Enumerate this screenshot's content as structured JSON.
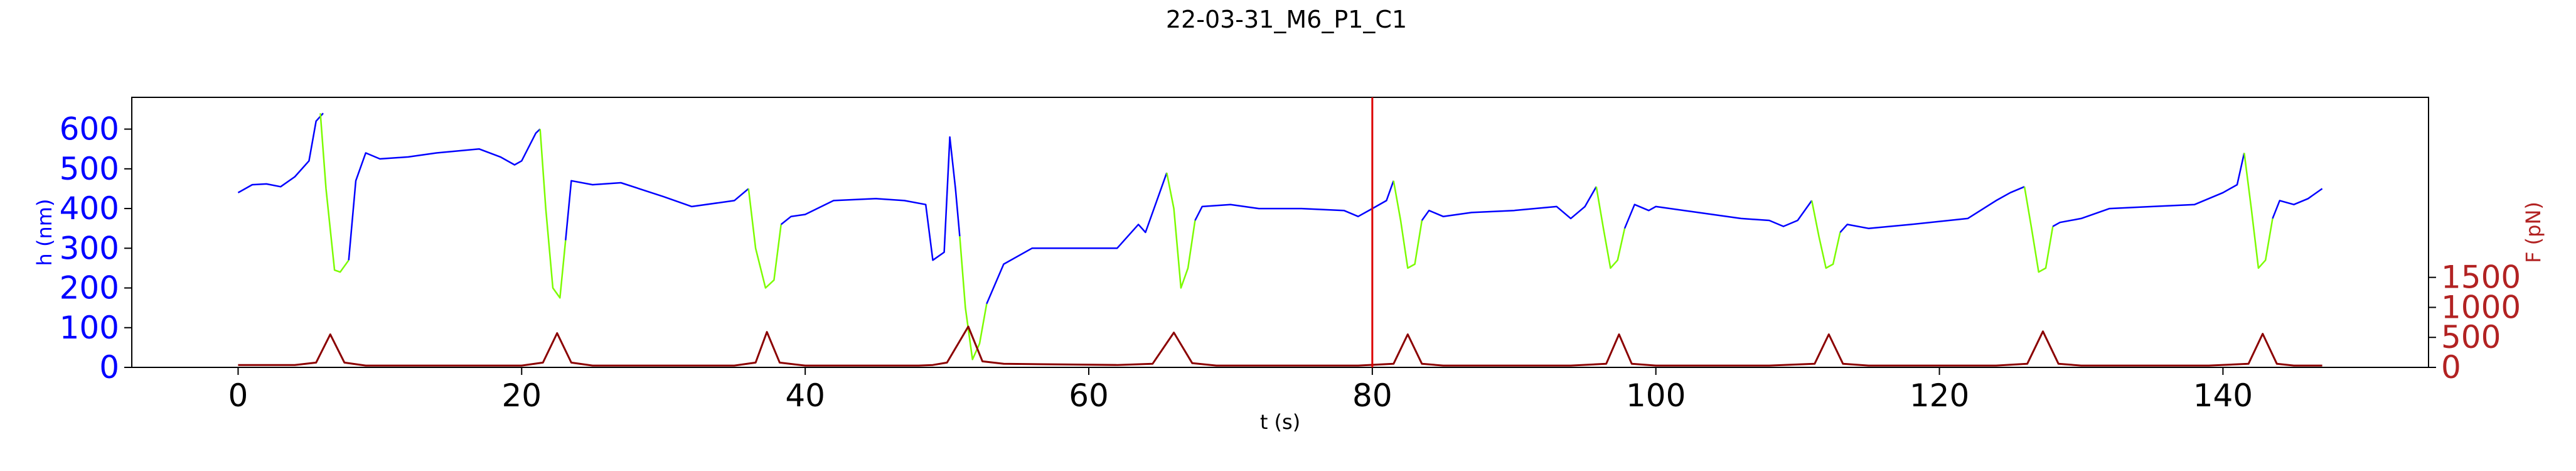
{
  "chart_data": {
    "type": "line",
    "title": "22-03-31_M6_P1_C1",
    "xlabel": "t (s)",
    "ylabel_left": "h (nm)",
    "ylabel_right": "F (pN)",
    "xlim": [
      -7.5,
      154.5
    ],
    "ylim_left": [
      0,
      680
    ],
    "ylim_right": [
      0,
      4500
    ],
    "x_ticks": [
      "0",
      "20",
      "40",
      "60",
      "80",
      "100",
      "120",
      "140"
    ],
    "y_left_ticks": [
      "0",
      "100",
      "200",
      "300",
      "400",
      "500",
      "600"
    ],
    "y_right_ticks": [
      "0",
      "500",
      "1000",
      "1500"
    ],
    "vertical_marker_x": 80,
    "colors": {
      "h_series": "#0000ff",
      "compression_series": "#7cfc00",
      "force_series": "#8b0000",
      "marker": "#dd0000",
      "left_axis": "#0000ff",
      "right_axis": "#b22222"
    },
    "series": [
      {
        "axis": "left",
        "color": "#0000ff",
        "x": [
          0,
          1,
          2,
          3,
          4,
          5,
          5.5,
          6
        ],
        "y": [
          440,
          460,
          462,
          455,
          480,
          520,
          620,
          640
        ]
      },
      {
        "axis": "left",
        "color": "#7cfc00",
        "x": [
          5.8,
          6.2,
          6.8,
          7.2,
          7.8
        ],
        "y": [
          640,
          450,
          245,
          240,
          270
        ]
      },
      {
        "axis": "left",
        "color": "#0000ff",
        "x": [
          7.8,
          8.3,
          9,
          10,
          12,
          14,
          17,
          18.5,
          19.5,
          20,
          21,
          21.3
        ],
        "y": [
          270,
          470,
          540,
          525,
          530,
          540,
          550,
          530,
          510,
          520,
          590,
          600
        ]
      },
      {
        "axis": "left",
        "color": "#7cfc00",
        "x": [
          21.3,
          21.7,
          22.2,
          22.7,
          23.1
        ],
        "y": [
          600,
          400,
          200,
          175,
          320
        ]
      },
      {
        "axis": "left",
        "color": "#0000ff",
        "x": [
          23.1,
          23.5,
          25,
          27,
          30,
          32,
          35,
          36
        ],
        "y": [
          320,
          470,
          460,
          465,
          430,
          405,
          420,
          450
        ]
      },
      {
        "axis": "left",
        "color": "#7cfc00",
        "x": [
          36,
          36.5,
          37.2,
          37.8,
          38.3
        ],
        "y": [
          450,
          300,
          200,
          220,
          360
        ]
      },
      {
        "axis": "left",
        "color": "#0000ff",
        "x": [
          38.3,
          39,
          40,
          42,
          45,
          47,
          48.5,
          49,
          49.8,
          50.2,
          50.6,
          50.9
        ],
        "y": [
          360,
          380,
          385,
          420,
          425,
          420,
          410,
          270,
          290,
          580,
          450,
          330
        ]
      },
      {
        "axis": "left",
        "color": "#7cfc00",
        "x": [
          50.9,
          51.3,
          51.8,
          52.3,
          52.8
        ],
        "y": [
          330,
          150,
          20,
          60,
          160
        ]
      },
      {
        "axis": "left",
        "color": "#0000ff",
        "x": [
          52.8,
          54,
          56,
          58,
          60,
          62,
          63.5,
          64,
          65,
          65.5
        ],
        "y": [
          160,
          260,
          300,
          300,
          300,
          300,
          360,
          340,
          440,
          490
        ]
      },
      {
        "axis": "left",
        "color": "#7cfc00",
        "x": [
          65.5,
          66,
          66.5,
          67,
          67.5
        ],
        "y": [
          490,
          400,
          200,
          250,
          370
        ]
      },
      {
        "axis": "left",
        "color": "#0000ff",
        "x": [
          67.5,
          68,
          70,
          72,
          75,
          78,
          79,
          80,
          81,
          81.5
        ],
        "y": [
          370,
          405,
          410,
          400,
          400,
          395,
          380,
          400,
          420,
          470
        ]
      },
      {
        "axis": "left",
        "color": "#7cfc00",
        "x": [
          81.5,
          82,
          82.5,
          83,
          83.5
        ],
        "y": [
          470,
          370,
          250,
          260,
          370
        ]
      },
      {
        "axis": "left",
        "color": "#0000ff",
        "x": [
          83.5,
          84,
          85,
          87,
          90,
          93,
          94,
          95,
          95.8
        ],
        "y": [
          370,
          395,
          380,
          390,
          395,
          405,
          375,
          405,
          455
        ]
      },
      {
        "axis": "left",
        "color": "#7cfc00",
        "x": [
          95.8,
          96.3,
          96.8,
          97.3,
          97.8
        ],
        "y": [
          455,
          350,
          250,
          270,
          350
        ]
      },
      {
        "axis": "left",
        "color": "#0000ff",
        "x": [
          97.8,
          98.5,
          99.5,
          100,
          103,
          106,
          108,
          109,
          110,
          111
        ],
        "y": [
          350,
          410,
          395,
          405,
          390,
          375,
          370,
          355,
          370,
          420
        ]
      },
      {
        "axis": "left",
        "color": "#7cfc00",
        "x": [
          111,
          111.5,
          112,
          112.5,
          113
        ],
        "y": [
          420,
          330,
          250,
          260,
          340
        ]
      },
      {
        "axis": "left",
        "color": "#0000ff",
        "x": [
          113,
          113.5,
          115,
          118,
          122,
          124,
          125,
          126
        ],
        "y": [
          340,
          360,
          350,
          360,
          375,
          420,
          440,
          455
        ]
      },
      {
        "axis": "left",
        "color": "#7cfc00",
        "x": [
          126,
          126.5,
          127,
          127.5,
          128
        ],
        "y": [
          455,
          350,
          240,
          250,
          355
        ]
      },
      {
        "axis": "left",
        "color": "#0000ff",
        "x": [
          128,
          128.5,
          130,
          132,
          135,
          138,
          140,
          141,
          141.5
        ],
        "y": [
          355,
          365,
          375,
          400,
          405,
          410,
          440,
          460,
          540
        ]
      },
      {
        "axis": "left",
        "color": "#7cfc00",
        "x": [
          141.5,
          142,
          142.5,
          143,
          143.5
        ],
        "y": [
          540,
          400,
          250,
          270,
          375
        ]
      },
      {
        "axis": "left",
        "color": "#0000ff",
        "x": [
          143.5,
          144,
          145,
          146,
          147
        ],
        "y": [
          375,
          420,
          410,
          425,
          450
        ]
      },
      {
        "axis": "right",
        "color": "#8b0000",
        "x": [
          0,
          4,
          5.5,
          6.5,
          7.5,
          9,
          20,
          21.5,
          22.5,
          23.5,
          25,
          35,
          36.5,
          37.3,
          38.2,
          40,
          48,
          49,
          50,
          51.5,
          52.5,
          54,
          62,
          64.5,
          66,
          67.3,
          69,
          79,
          81.5,
          82.5,
          83.5,
          85,
          94,
          96.5,
          97.4,
          98.3,
          100,
          108,
          111.2,
          112.2,
          113.2,
          115,
          124,
          126.2,
          127.3,
          128.4,
          130,
          139,
          141.8,
          142.8,
          143.8,
          145,
          147
        ],
        "y": [
          40,
          40,
          80,
          550,
          80,
          30,
          30,
          80,
          570,
          80,
          30,
          30,
          80,
          590,
          80,
          30,
          30,
          40,
          80,
          680,
          100,
          60,
          40,
          60,
          580,
          70,
          30,
          30,
          60,
          550,
          60,
          30,
          30,
          60,
          550,
          60,
          30,
          30,
          60,
          550,
          60,
          30,
          30,
          60,
          600,
          60,
          30,
          30,
          60,
          560,
          60,
          30,
          30
        ]
      }
    ]
  }
}
